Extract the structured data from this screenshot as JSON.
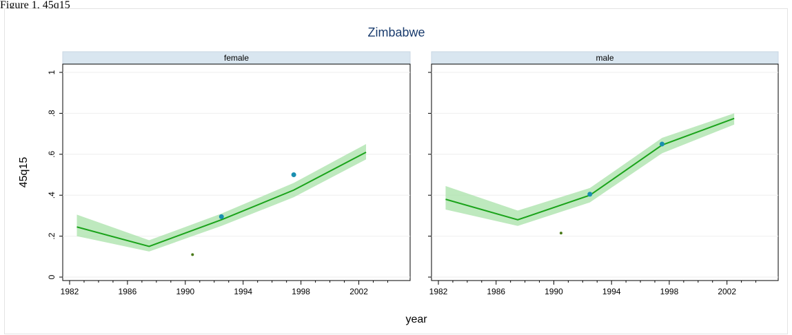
{
  "caption_fragment": "Figure 1, 45q15",
  "chart_data": {
    "type": "line",
    "title": "Zimbabwe",
    "xlabel": "year",
    "ylabel": "45q15",
    "ylim": [
      0,
      1
    ],
    "xlim": [
      1982,
      2004.5
    ],
    "xticks": [
      "1982",
      "1986",
      "1990",
      "1994",
      "1998",
      "2002"
    ],
    "yticks": [
      "0",
      ".2",
      ".4",
      ".6",
      ".8",
      "1"
    ],
    "grid": true,
    "colors": {
      "line": "#1aa31a",
      "band": "#a8e2a8",
      "point_large": "#1a8fb0",
      "point_small": "#4a7a1a",
      "strip": "#d9e6f0"
    },
    "panels": [
      {
        "label": "female",
        "line": {
          "x": [
            1982.5,
            1987.5,
            1992.5,
            1997.5,
            2002.5
          ],
          "y": [
            0.245,
            0.15,
            0.28,
            0.425,
            0.61
          ]
        },
        "band_lower": [
          0.2,
          0.125,
          0.25,
          0.39,
          0.575
        ],
        "band_upper": [
          0.305,
          0.18,
          0.31,
          0.46,
          0.65
        ],
        "points": [
          {
            "x": 1990.5,
            "y": 0.11,
            "kind": "small"
          },
          {
            "x": 1992.5,
            "y": 0.295,
            "kind": "large"
          },
          {
            "x": 1997.5,
            "y": 0.5,
            "kind": "large"
          }
        ]
      },
      {
        "label": "male",
        "line": {
          "x": [
            1982.5,
            1987.5,
            1992.5,
            1997.5,
            2002.5
          ],
          "y": [
            0.38,
            0.28,
            0.4,
            0.645,
            0.775
          ]
        },
        "band_lower": [
          0.33,
          0.25,
          0.365,
          0.605,
          0.745
        ],
        "band_upper": [
          0.445,
          0.325,
          0.435,
          0.68,
          0.8
        ],
        "points": [
          {
            "x": 1990.5,
            "y": 0.215,
            "kind": "small"
          },
          {
            "x": 1992.5,
            "y": 0.405,
            "kind": "large"
          },
          {
            "x": 1997.5,
            "y": 0.65,
            "kind": "large"
          }
        ]
      }
    ]
  }
}
